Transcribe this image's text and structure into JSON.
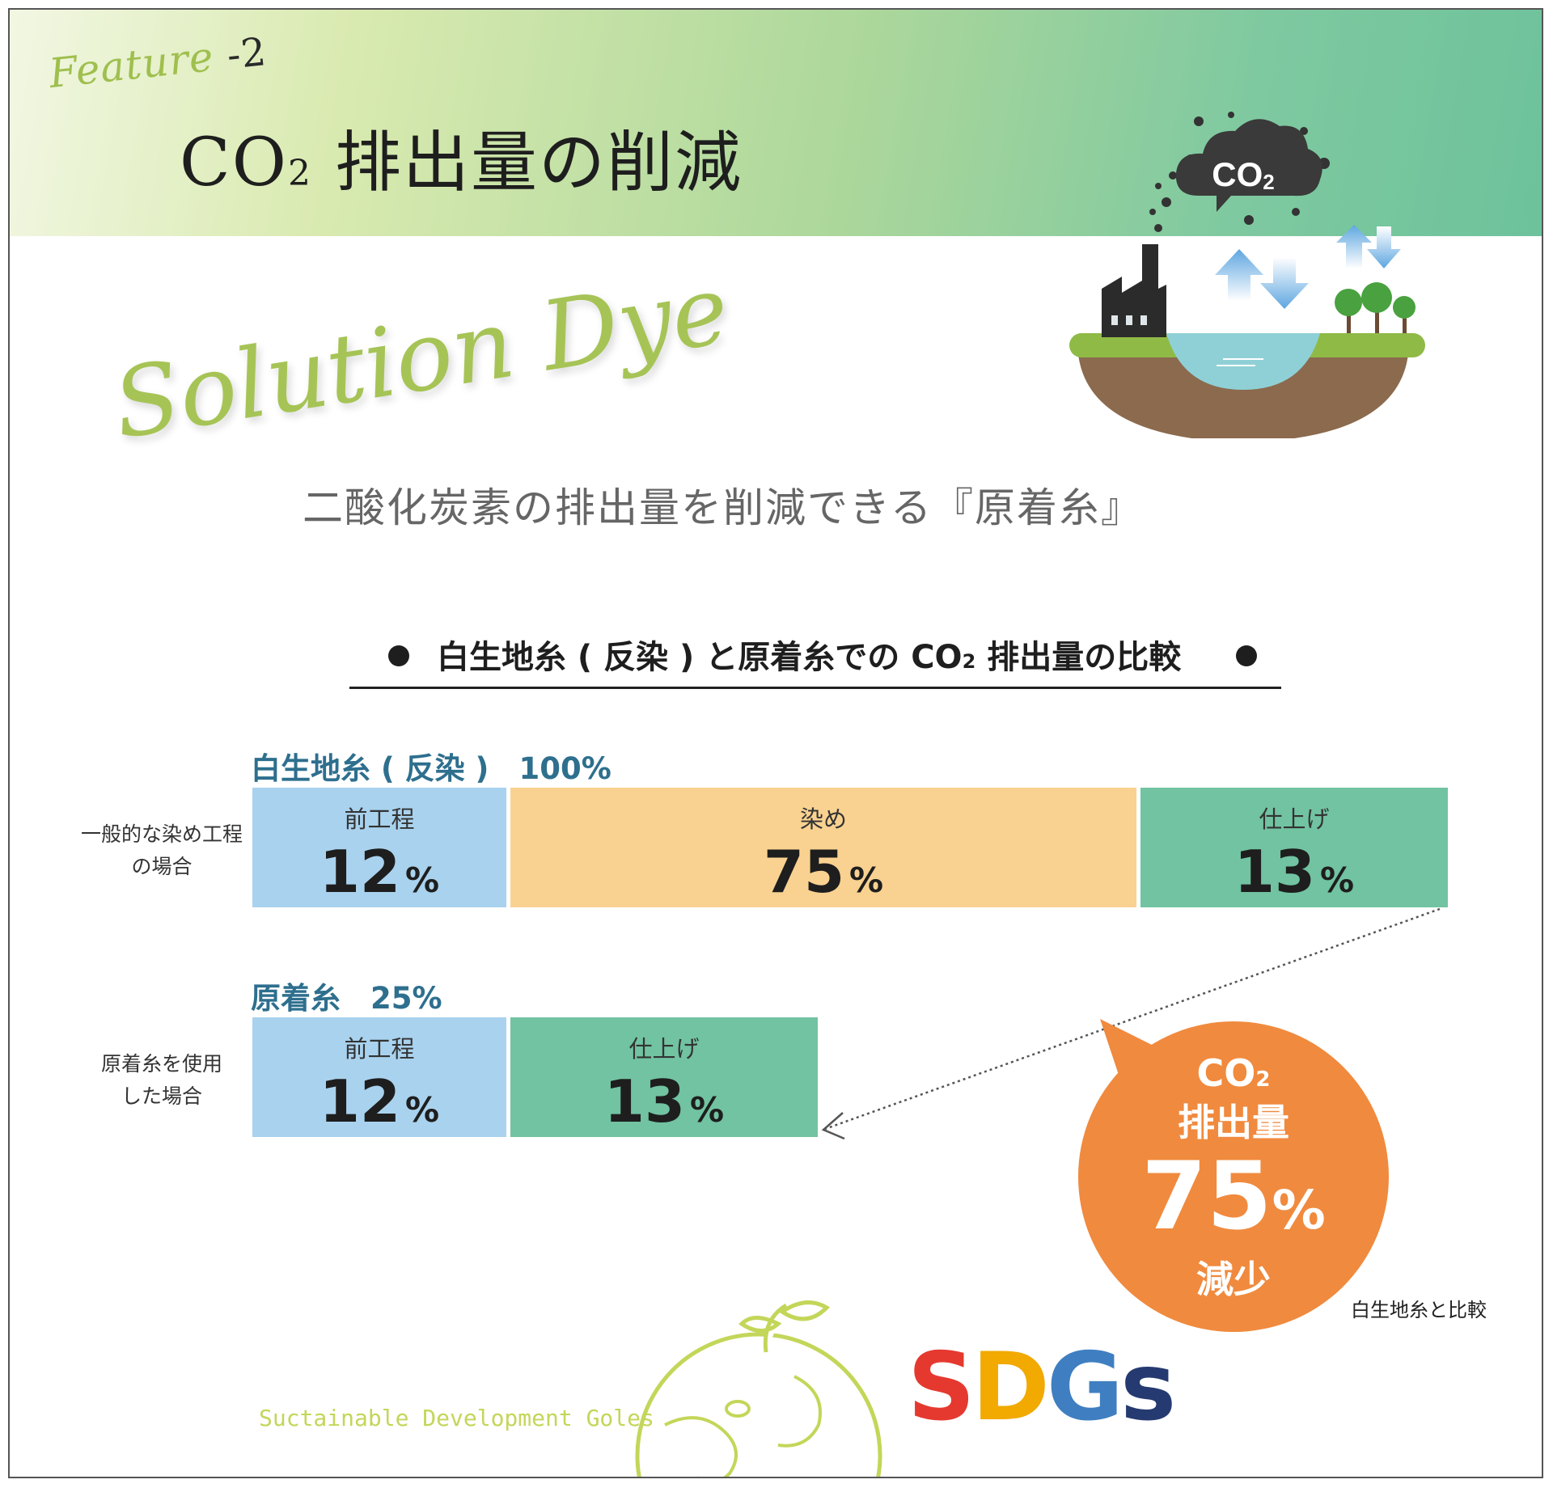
{
  "header": {
    "feature_label": "Feature",
    "feature_number": "-2",
    "title_co": "CO",
    "title_sub": "2",
    "title_rest": "排出量の削減"
  },
  "illustration": {
    "cloud_label_co": "CO",
    "cloud_label_sub": "2",
    "icons": [
      "cloud-icon",
      "factory-icon",
      "up-arrow-icon",
      "down-arrow-icon",
      "tree-icon",
      "lake-icon"
    ]
  },
  "solution_script": "Solution Dye",
  "subtitle": "二酸化炭素の排出量を削減できる『原着糸』",
  "comparison": {
    "heading_pre": "白生地糸 ( 反染 ) と原着糸での CO",
    "heading_sub": "2",
    "heading_post": " 排出量の比較"
  },
  "rows": [
    {
      "title": "白生地糸 ( 反染 )　100%",
      "note_line1": "一般的な染め工程",
      "note_line2": "の場合",
      "segments": [
        {
          "label": "前工程",
          "value": "12",
          "unit": "%",
          "color": "#a9d2ee"
        },
        {
          "label": "染め",
          "value": "75",
          "unit": "%",
          "color": "#f9d291"
        },
        {
          "label": "仕上げ",
          "value": "13",
          "unit": "%",
          "color": "#71c3a2"
        }
      ]
    },
    {
      "title": "原着糸　25%",
      "note_line1": "原着糸を使用",
      "note_line2": "した場合",
      "segments": [
        {
          "label": "前工程",
          "value": "12",
          "unit": "%",
          "color": "#a9d2ee"
        },
        {
          "label": "仕上げ",
          "value": "13",
          "unit": "%",
          "color": "#71c3a2"
        }
      ]
    }
  ],
  "bubble": {
    "co": "CO",
    "sub": "2",
    "emission": "排出量",
    "value": "75",
    "unit": "%",
    "reduction": "減少",
    "color": "#f08a3e"
  },
  "compare_note": "白生地糸と比較",
  "footer": {
    "caption": "Suctainable Development Goles",
    "sdgs_letters": [
      "S",
      "D",
      "G",
      "s"
    ]
  },
  "colors": {
    "accent_green": "#a6c456",
    "heading_blue": "#2e6f8e"
  }
}
